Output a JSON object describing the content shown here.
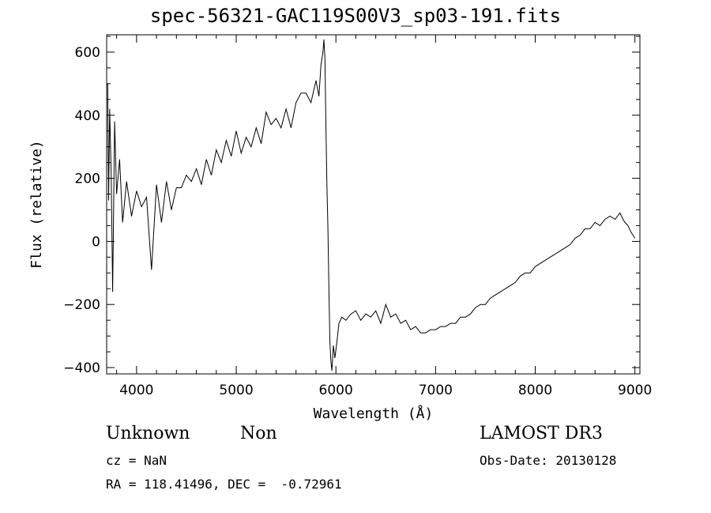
{
  "chart_data": {
    "type": "line",
    "title": "spec-56321-GAC119S00V3_sp03-191.fits",
    "xlabel": "Wavelength (Å)",
    "ylabel": "Flux (relative)",
    "xlim": [
      3700,
      9050
    ],
    "ylim": [
      -420,
      655
    ],
    "xticks": [
      4000,
      5000,
      6000,
      7000,
      8000,
      9000
    ],
    "yticks": [
      -400,
      -200,
      0,
      200,
      400,
      600
    ],
    "xtick_labels": [
      "4000",
      "5000",
      "6000",
      "7000",
      "8000",
      "9000"
    ],
    "ytick_labels": [
      "−400",
      "−200",
      "0",
      "200",
      "400",
      "600"
    ],
    "series": [
      {
        "name": "flux",
        "x": [
          3710,
          3720,
          3730,
          3745,
          3760,
          3780,
          3800,
          3830,
          3860,
          3900,
          3950,
          4000,
          4050,
          4100,
          4150,
          4200,
          4250,
          4300,
          4350,
          4400,
          4450,
          4500,
          4550,
          4600,
          4650,
          4700,
          4750,
          4800,
          4850,
          4900,
          4950,
          5000,
          5050,
          5100,
          5150,
          5200,
          5250,
          5300,
          5350,
          5400,
          5450,
          5500,
          5550,
          5600,
          5650,
          5700,
          5750,
          5800,
          5830,
          5850,
          5870,
          5880,
          5890,
          5900,
          5910,
          5920,
          5930,
          5940,
          5950,
          5960,
          5975,
          5990,
          6010,
          6030,
          6060,
          6100,
          6150,
          6200,
          6250,
          6300,
          6350,
          6400,
          6450,
          6500,
          6550,
          6600,
          6650,
          6700,
          6750,
          6800,
          6850,
          6900,
          6950,
          7000,
          7050,
          7100,
          7150,
          7200,
          7250,
          7300,
          7350,
          7400,
          7450,
          7500,
          7550,
          7600,
          7650,
          7700,
          7750,
          7800,
          7850,
          7900,
          7950,
          8000,
          8050,
          8100,
          8150,
          8200,
          8250,
          8300,
          8350,
          8400,
          8450,
          8500,
          8550,
          8600,
          8650,
          8700,
          8750,
          8800,
          8850,
          8880,
          8900,
          8930,
          8960,
          8980,
          9000
        ],
        "values": [
          500,
          130,
          420,
          220,
          -160,
          380,
          150,
          260,
          60,
          190,
          80,
          160,
          110,
          140,
          -90,
          180,
          60,
          190,
          100,
          170,
          170,
          210,
          190,
          230,
          180,
          260,
          210,
          290,
          250,
          320,
          270,
          350,
          280,
          330,
          300,
          360,
          310,
          410,
          370,
          390,
          360,
          420,
          360,
          440,
          470,
          470,
          440,
          510,
          460,
          560,
          600,
          640,
          580,
          360,
          180,
          40,
          -160,
          -320,
          -380,
          -410,
          -330,
          -370,
          -320,
          -260,
          -240,
          -250,
          -230,
          -220,
          -250,
          -230,
          -240,
          -220,
          -260,
          -200,
          -240,
          -230,
          -260,
          -250,
          -280,
          -270,
          -290,
          -290,
          -280,
          -280,
          -270,
          -270,
          -260,
          -260,
          -240,
          -240,
          -230,
          -210,
          -200,
          -200,
          -180,
          -170,
          -160,
          -150,
          -140,
          -130,
          -110,
          -100,
          -100,
          -80,
          -70,
          -60,
          -50,
          -40,
          -30,
          -20,
          -10,
          10,
          20,
          40,
          40,
          60,
          50,
          70,
          80,
          70,
          90,
          70,
          60,
          50,
          30,
          20,
          10
        ]
      }
    ]
  },
  "info": {
    "class": "Unknown",
    "subclass": "Non",
    "survey": "LAMOST DR3",
    "cz": "cz = NaN",
    "obs_date": "Obs-Date: 20130128",
    "radec": "RA = 118.41496, DEC =  -0.72961"
  }
}
